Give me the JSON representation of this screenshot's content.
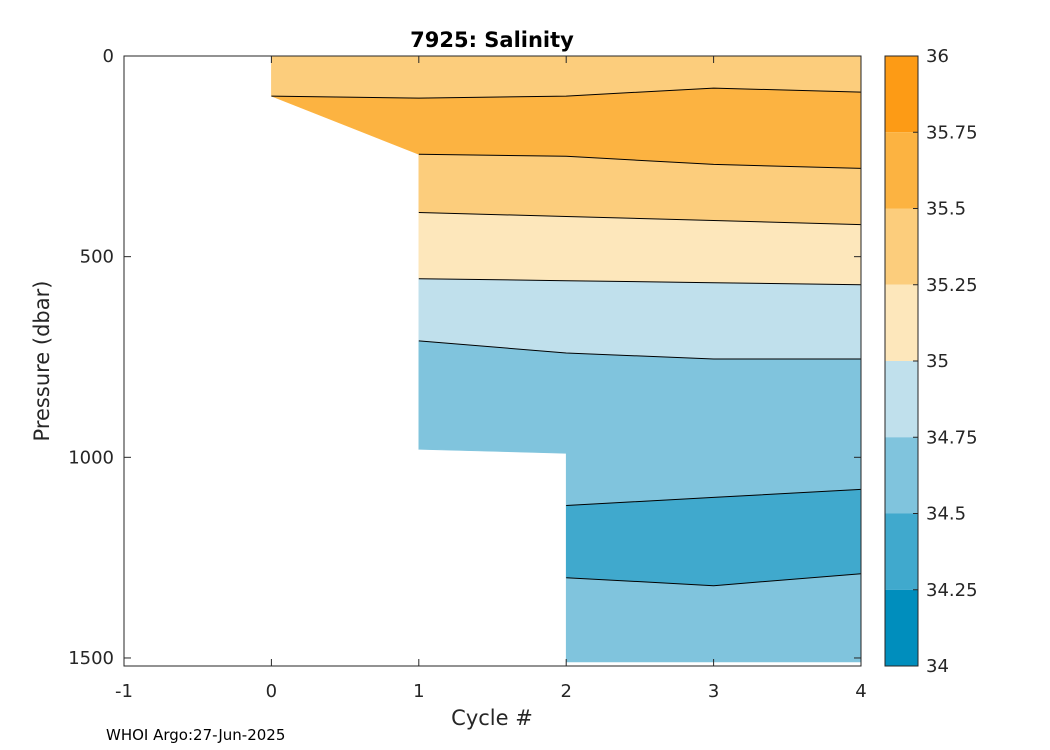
{
  "chart_data": {
    "type": "contour",
    "title": "7925:  Salinity",
    "xlabel": "Cycle #",
    "ylabel": "Pressure (dbar)",
    "xlim": [
      -1,
      4
    ],
    "ylim": [
      1520,
      0
    ],
    "xticks": [
      "-1",
      "0",
      "1",
      "2",
      "3",
      "4"
    ],
    "yticks": [
      "0",
      "500",
      "1000",
      "1500"
    ],
    "colorbar": {
      "ticks": [
        "36",
        "35.75",
        "35.5",
        "35.25",
        "35",
        "34.75",
        "34.5",
        "34.25",
        "34"
      ],
      "bins": [
        {
          "from": 35.75,
          "to": 36.0,
          "color": "#fd9b15"
        },
        {
          "from": 35.5,
          "to": 35.75,
          "color": "#fcb341"
        },
        {
          "from": 35.25,
          "to": 35.5,
          "color": "#fccd7c"
        },
        {
          "from": 35.0,
          "to": 35.25,
          "color": "#fde7bb"
        },
        {
          "from": 34.75,
          "to": 35.0,
          "color": "#c0e0ec"
        },
        {
          "from": 34.5,
          "to": 34.75,
          "color": "#80c4dd"
        },
        {
          "from": 34.25,
          "to": 34.5,
          "color": "#40a9cd"
        },
        {
          "from": 34.0,
          "to": 34.25,
          "color": "#008ebd"
        }
      ]
    },
    "data_extent": [
      {
        "cycle": 0,
        "max_pressure": 160
      },
      {
        "cycle": 1,
        "max_pressure": 980
      },
      {
        "cycle": 2,
        "max_pressure": 1510
      },
      {
        "cycle": 3,
        "max_pressure": 1510
      },
      {
        "cycle": 4,
        "max_pressure": 1510
      }
    ],
    "contours": [
      {
        "level": 35.5,
        "x": [
          0,
          1,
          2,
          3,
          4
        ],
        "y": [
          100,
          105,
          100,
          80,
          90
        ]
      },
      {
        "level": 35.5,
        "x": [
          1,
          2,
          3,
          4
        ],
        "y": [
          245,
          250,
          270,
          280
        ]
      },
      {
        "level": 35.25,
        "x": [
          1,
          2,
          3,
          4
        ],
        "y": [
          390,
          400,
          410,
          420
        ]
      },
      {
        "level": 35.0,
        "x": [
          1,
          2,
          3,
          4
        ],
        "y": [
          555,
          560,
          565,
          570
        ]
      },
      {
        "level": 34.75,
        "x": [
          1,
          2,
          3,
          4
        ],
        "y": [
          710,
          740,
          755,
          755
        ]
      },
      {
        "level": 34.5,
        "x": [
          2,
          3,
          4
        ],
        "y": [
          1120,
          1100,
          1080
        ]
      },
      {
        "level": 34.5,
        "x": [
          2,
          3,
          4
        ],
        "y": [
          1300,
          1320,
          1290
        ]
      }
    ],
    "regions": [
      {
        "color": "#fccd7c",
        "description": "35.25-35.5 near surface",
        "top": [
          [
            0,
            0
          ],
          [
            4,
            0
          ]
        ],
        "bottom": [
          [
            0,
            100
          ],
          [
            1,
            105
          ],
          [
            2,
            100
          ],
          [
            3,
            80
          ],
          [
            4,
            90
          ]
        ]
      },
      {
        "color": "#fcb341",
        "description": "35.5-35.75 core",
        "top": [
          [
            0,
            100
          ],
          [
            1,
            105
          ],
          [
            2,
            100
          ],
          [
            3,
            80
          ],
          [
            4,
            90
          ]
        ],
        "bottom": [
          [
            1,
            245
          ],
          [
            2,
            250
          ],
          [
            3,
            270
          ],
          [
            4,
            280
          ]
        ]
      },
      {
        "color": "#fccd7c",
        "description": "35.25-35.5",
        "top": [
          [
            1,
            245
          ],
          [
            2,
            250
          ],
          [
            3,
            270
          ],
          [
            4,
            280
          ]
        ],
        "bottom": [
          [
            1,
            390
          ],
          [
            2,
            400
          ],
          [
            3,
            410
          ],
          [
            4,
            420
          ]
        ]
      },
      {
        "color": "#fde7bb",
        "description": "35-35.25",
        "top": [
          [
            1,
            390
          ],
          [
            2,
            400
          ],
          [
            3,
            410
          ],
          [
            4,
            420
          ]
        ],
        "bottom": [
          [
            1,
            555
          ],
          [
            2,
            560
          ],
          [
            3,
            565
          ],
          [
            4,
            570
          ]
        ]
      },
      {
        "color": "#c0e0ec",
        "description": "34.75-35",
        "top": [
          [
            1,
            555
          ],
          [
            2,
            560
          ],
          [
            3,
            565
          ],
          [
            4,
            570
          ]
        ],
        "bottom": [
          [
            1,
            710
          ],
          [
            2,
            740
          ],
          [
            3,
            755
          ],
          [
            4,
            755
          ]
        ]
      },
      {
        "color": "#80c4dd",
        "description": "34.5-34.75",
        "top": [
          [
            1,
            710
          ],
          [
            2,
            740
          ],
          [
            3,
            755
          ],
          [
            4,
            755
          ]
        ],
        "bottom": [
          [
            1,
            980
          ],
          [
            2,
            990
          ],
          [
            2,
            1120
          ],
          [
            3,
            1100
          ],
          [
            4,
            1080
          ]
        ]
      },
      {
        "color": "#40a9cd",
        "description": "34.25-34.5",
        "top": [
          [
            2,
            1120
          ],
          [
            3,
            1100
          ],
          [
            4,
            1080
          ]
        ],
        "bottom": [
          [
            2,
            1300
          ],
          [
            3,
            1320
          ],
          [
            4,
            1290
          ]
        ]
      },
      {
        "color": "#80c4dd",
        "description": "34.5-34.75 deep",
        "top": [
          [
            2,
            1300
          ],
          [
            3,
            1320
          ],
          [
            4,
            1290
          ]
        ],
        "bottom": [
          [
            2,
            1510
          ],
          [
            4,
            1510
          ]
        ]
      }
    ]
  },
  "footer": {
    "credit": "WHOI Argo:27-Jun-2025"
  }
}
